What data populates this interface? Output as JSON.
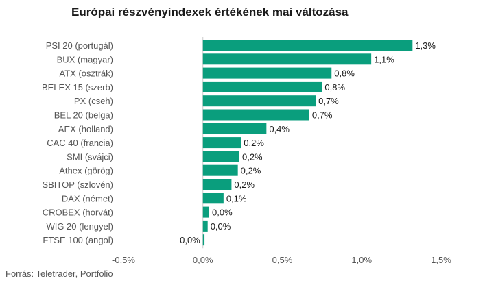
{
  "chart_data": {
    "type": "bar",
    "orientation": "horizontal",
    "title": "Európai részvényindexek értékének mai változása",
    "source": "Forrás: Teletrader, Portfolio",
    "categories": [
      "PSI 20 (portugál)",
      "BUX (magyar)",
      "ATX (osztrák)",
      "BELEX 15 (szerb)",
      "PX (cseh)",
      "BEL 20 (belga)",
      "AEX (holland)",
      "CAC 40 (francia)",
      "SMI (svájci)",
      "Athex (görög)",
      "SBITOP (szlovén)",
      "DAX (német)",
      "CROBEX (horvát)",
      "WIG 20 (lengyel)",
      "FTSE 100 (angol)"
    ],
    "values": [
      1.32,
      1.06,
      0.81,
      0.75,
      0.71,
      0.67,
      0.4,
      0.24,
      0.23,
      0.22,
      0.18,
      0.13,
      0.04,
      0.03,
      0.01
    ],
    "value_labels": [
      "1,3%",
      "1,1%",
      "0,8%",
      "0,8%",
      "0,7%",
      "0,7%",
      "0,4%",
      "0,2%",
      "0,2%",
      "0,2%",
      "0,2%",
      "0,1%",
      "0,0%",
      "0,0%",
      "0,0%"
    ],
    "xlim": [
      -0.5,
      1.5
    ],
    "xticks": [
      -0.5,
      0.0,
      0.5,
      1.0,
      1.5
    ],
    "xtick_labels": [
      "-0,5%",
      "0,0%",
      "0,5%",
      "1,0%",
      "1,5%"
    ],
    "grid": false,
    "bar_color": "#0a9e7d",
    "zero_line_color": "#cccccc"
  }
}
